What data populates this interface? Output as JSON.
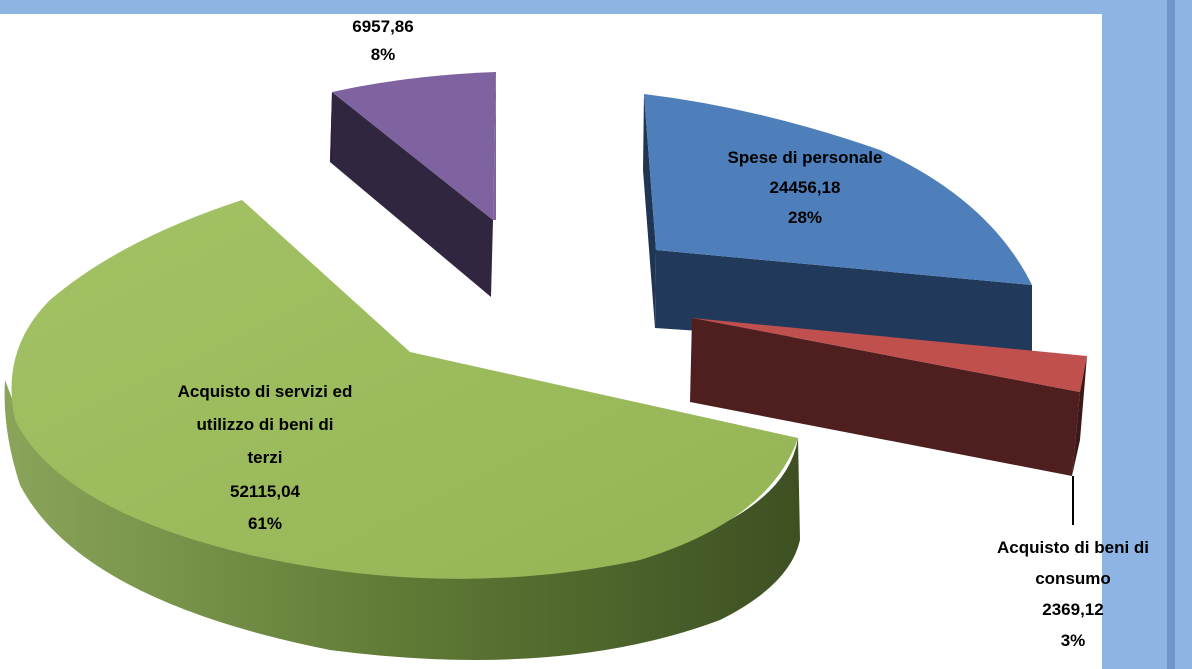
{
  "chart_data": {
    "type": "pie",
    "style": "3d-exploded",
    "slices": [
      {
        "label": "Spese di personale",
        "value": "24456,18",
        "percent": "28%",
        "color": "#4f81bd"
      },
      {
        "label": "Acquisto di beni di consumo",
        "value": "2369,12",
        "percent": "3%",
        "color": "#c0504d"
      },
      {
        "label": "Acquisto di servizi ed utilizzo di beni di terzi",
        "value": "52115,04",
        "percent": "61%",
        "color": "#9bbb59"
      },
      {
        "label": "",
        "value": "6957,86",
        "percent": "8%",
        "color": "#8064a2"
      }
    ],
    "labels": {
      "blue": {
        "l1": "Spese di personale",
        "l2": "24456,18",
        "l3": "28%"
      },
      "red": {
        "l1": "Acquisto di beni di",
        "l2": "consumo",
        "l3": "2369,12",
        "l4": "3%"
      },
      "green": {
        "l1": "Acquisto di servizi ed",
        "l2": "utilizzo di beni di",
        "l3": "terzi",
        "l4": "52115,04",
        "l5": "61%"
      },
      "purple": {
        "l1": "6957,86",
        "l2": "8%"
      }
    }
  }
}
